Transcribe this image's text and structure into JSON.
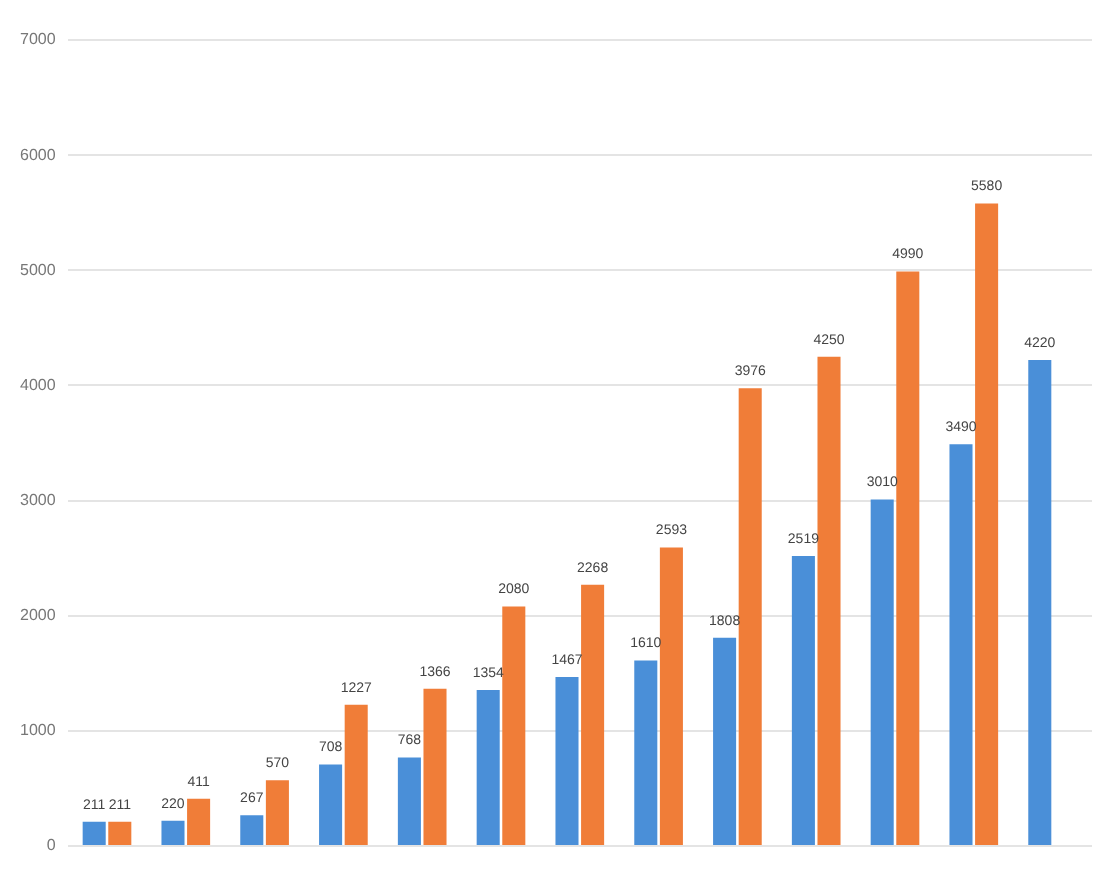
{
  "chart_data": {
    "type": "bar",
    "categories": [
      null,
      null,
      null,
      null,
      null,
      null,
      null,
      null,
      null,
      null,
      null,
      null,
      null
    ],
    "series": [
      {
        "color": "#4a8fd8",
        "values": [
          211,
          220,
          267,
          708,
          768,
          1354,
          1467,
          1610,
          1808,
          2519,
          3010,
          3490,
          4220
        ]
      },
      {
        "color": "#f07d38",
        "values": [
          211,
          411,
          570,
          1227,
          1366,
          2080,
          2268,
          2593,
          3976,
          4250,
          4990,
          5580,
          null
        ]
      }
    ],
    "ylim": [
      0,
      7000
    ],
    "yticks": [
      0,
      1000,
      2000,
      3000,
      4000,
      5000,
      6000,
      7000
    ],
    "grid": "y",
    "data_labels": true
  }
}
